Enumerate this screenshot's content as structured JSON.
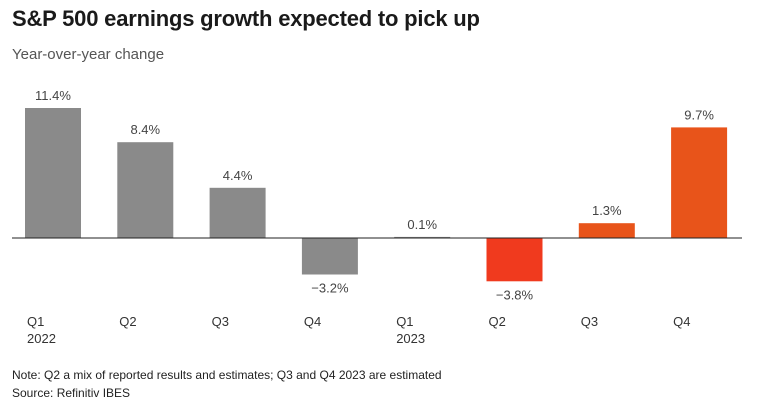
{
  "header": {
    "title": "S&P 500 earnings growth expected to pick up",
    "subtitle": "Year-over-year change"
  },
  "footer": {
    "note": "Note: Q2 a mix of reported results and estimates; Q3 and Q4 2023 are estimated",
    "source": "Source: Refinitiv IBES"
  },
  "chart_data": {
    "type": "bar",
    "title": "S&P 500 earnings growth expected to pick up",
    "subtitle": "Year-over-year change",
    "xlabel": "",
    "ylabel": "",
    "categories": [
      "Q1",
      "Q2",
      "Q3",
      "Q4",
      "Q1",
      "Q2",
      "Q3",
      "Q4"
    ],
    "year_labels": [
      "2022",
      "",
      "",
      "",
      "2023",
      "",
      "",
      ""
    ],
    "values": [
      11.4,
      8.4,
      4.4,
      -3.2,
      0.1,
      -3.8,
      1.3,
      9.7
    ],
    "data_labels": [
      "11.4%",
      "8.4%",
      "4.4%",
      "−3.2%",
      "0.1%",
      "−3.8%",
      "1.3%",
      "9.7%"
    ],
    "colors": [
      "#8a8a8a",
      "#8a8a8a",
      "#8a8a8a",
      "#8a8a8a",
      "#8a8a8a",
      "#f03a1e",
      "#e8541a",
      "#e8541a"
    ],
    "ylim": [
      -3.8,
      11.4
    ],
    "grid": false,
    "legend": "none"
  }
}
